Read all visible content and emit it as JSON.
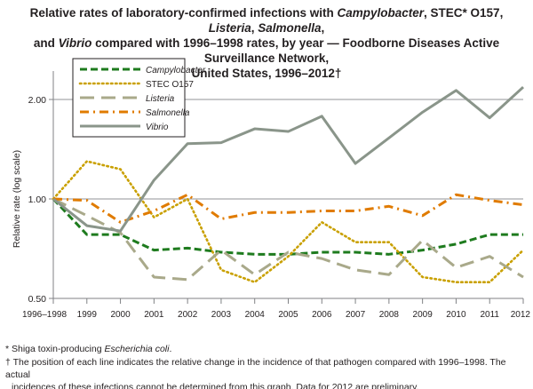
{
  "chart_data": {
    "type": "line",
    "title_parts": {
      "p1": "Relative rates of laboratory-confirmed infections with ",
      "campy": "Campylobacter",
      "p2": ", STEC* O157, ",
      "listeria": "Listeria",
      "p3": ", ",
      "salmonella": "Salmonella",
      "p4": ",",
      "p5": "and ",
      "vibrio": "Vibrio",
      "p6": " compared with 1996–1998 rates, by year — Foodborne Diseases Active Surveillance Network,",
      "p7": "United States, 1996–2012†"
    },
    "ylabel": "Relative rate (log scale)",
    "xlabel": "",
    "yscale": "log",
    "ylim": [
      0.5,
      2.3
    ],
    "yticks": [
      {
        "value": 0.5,
        "label": "0.50"
      },
      {
        "value": 1.0,
        "label": "1.00"
      },
      {
        "value": 2.0,
        "label": "2.00"
      }
    ],
    "categories": [
      "1996–1998",
      "1999",
      "2000",
      "2001",
      "2002",
      "2003",
      "2004",
      "2005",
      "2006",
      "2007",
      "2008",
      "2009",
      "2010",
      "2011",
      "2012"
    ],
    "legend_position": "top-left",
    "series": [
      {
        "name": "Campylobacter",
        "italic": true,
        "color": "#1e7b1e",
        "dash": "8,4",
        "values": [
          1.0,
          0.78,
          0.78,
          0.7,
          0.71,
          0.69,
          0.68,
          0.68,
          0.69,
          0.69,
          0.68,
          0.7,
          0.73,
          0.78,
          0.78
        ]
      },
      {
        "name": "STEC O157",
        "italic": false,
        "color": "#c9a000",
        "dash": "1.5,3.5",
        "values": [
          1.0,
          1.3,
          1.23,
          0.88,
          1.0,
          0.61,
          0.56,
          0.67,
          0.85,
          0.74,
          0.74,
          0.58,
          0.56,
          0.56,
          0.7
        ]
      },
      {
        "name": "Listeria",
        "italic": true,
        "color": "#a9a98a",
        "dash": "16,8",
        "values": [
          1.0,
          0.89,
          0.79,
          0.58,
          0.57,
          0.7,
          0.59,
          0.69,
          0.66,
          0.61,
          0.59,
          0.75,
          0.62,
          0.67,
          0.58
        ]
      },
      {
        "name": "Salmonella",
        "italic": true,
        "color": "#e07b00",
        "dash": "10,5,2,5",
        "values": [
          1.0,
          0.99,
          0.85,
          0.92,
          1.03,
          0.87,
          0.91,
          0.91,
          0.92,
          0.92,
          0.95,
          0.89,
          1.03,
          0.99,
          0.96
        ]
      },
      {
        "name": "Vibrio",
        "italic": true,
        "color": "#8a958a",
        "dash": "",
        "values": [
          1.0,
          0.83,
          0.8,
          1.14,
          1.47,
          1.48,
          1.63,
          1.6,
          1.78,
          1.28,
          1.53,
          1.83,
          2.13,
          1.76,
          2.18
        ]
      }
    ]
  },
  "footnotes": {
    "f1_pre": "* Shiga toxin-producing ",
    "f1_it": "Escherichia coli",
    "f1_post": ".",
    "f2a": "† The position of each line indicates the relative change in the incidence of that pathogen compared with 1996–1998.  The actual",
    "f2b": "incidences of these infections cannot be determined from this graph.  Data for 2012 are preliminary."
  }
}
